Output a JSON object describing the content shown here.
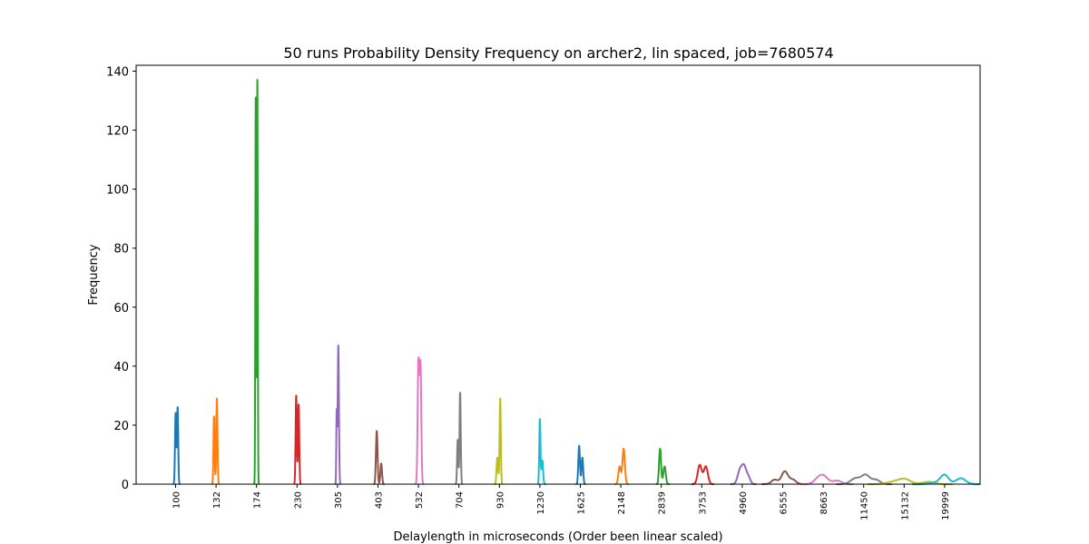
{
  "chart_data": {
    "type": "line",
    "title": "50 runs Probability Density Frequency on archer2, lin spaced, job=7680574",
    "xlabel": "Delaylength in microseconds (Order been linear scaled)",
    "ylabel": "Frequency",
    "ylim": [
      0,
      142
    ],
    "yticks": [
      0,
      20,
      40,
      60,
      80,
      100,
      120,
      140
    ],
    "categories": [
      "100",
      "132",
      "174",
      "230",
      "305",
      "403",
      "532",
      "704",
      "930",
      "1230",
      "1625",
      "2148",
      "2839",
      "3753",
      "4960",
      "6555",
      "8663",
      "11450",
      "15132",
      "19999"
    ],
    "grid": false,
    "legend": "none",
    "colors": [
      "#1f77b4",
      "#ff7f0e",
      "#2ca02c",
      "#d62728",
      "#9467bd",
      "#8c564b",
      "#e377c2",
      "#7f7f7f",
      "#bcbd22",
      "#17becf"
    ],
    "series": [
      {
        "category": "100",
        "peaks": [
          {
            "x": 0.0,
            "y": 24,
            "w": 0.015
          },
          {
            "x": 0.05,
            "y": 26,
            "w": 0.015
          }
        ]
      },
      {
        "category": "132",
        "peaks": [
          {
            "x": -0.05,
            "y": 23,
            "w": 0.015
          },
          {
            "x": 0.02,
            "y": 29,
            "w": 0.015
          }
        ]
      },
      {
        "category": "174",
        "peaks": [
          {
            "x": -0.02,
            "y": 131,
            "w": 0.01
          },
          {
            "x": 0.02,
            "y": 137,
            "w": 0.01
          }
        ]
      },
      {
        "category": "230",
        "peaks": [
          {
            "x": -0.02,
            "y": 30,
            "w": 0.015
          },
          {
            "x": 0.04,
            "y": 27,
            "w": 0.015
          }
        ]
      },
      {
        "category": "305",
        "peaks": [
          {
            "x": -0.02,
            "y": 24,
            "w": 0.01
          },
          {
            "x": 0.02,
            "y": 47,
            "w": 0.015
          }
        ]
      },
      {
        "category": "403",
        "peaks": [
          {
            "x": -0.03,
            "y": 18,
            "w": 0.02
          },
          {
            "x": 0.08,
            "y": 7,
            "w": 0.02
          }
        ]
      },
      {
        "category": "532",
        "peaks": [
          {
            "x": 0.0,
            "y": 41,
            "w": 0.02
          },
          {
            "x": 0.05,
            "y": 40,
            "w": 0.02
          }
        ]
      },
      {
        "category": "704",
        "peaks": [
          {
            "x": -0.03,
            "y": 15,
            "w": 0.015
          },
          {
            "x": 0.03,
            "y": 31,
            "w": 0.015
          }
        ]
      },
      {
        "category": "930",
        "peaks": [
          {
            "x": -0.05,
            "y": 9,
            "w": 0.02
          },
          {
            "x": 0.02,
            "y": 29,
            "w": 0.015
          }
        ]
      },
      {
        "category": "1230",
        "peaks": [
          {
            "x": 0.0,
            "y": 22,
            "w": 0.015
          },
          {
            "x": 0.06,
            "y": 8,
            "w": 0.02
          }
        ]
      },
      {
        "category": "1625",
        "peaks": [
          {
            "x": -0.03,
            "y": 13,
            "w": 0.02
          },
          {
            "x": 0.05,
            "y": 9,
            "w": 0.02
          }
        ]
      },
      {
        "category": "2148",
        "peaks": [
          {
            "x": -0.03,
            "y": 6,
            "w": 0.03
          },
          {
            "x": 0.07,
            "y": 12,
            "w": 0.03
          }
        ]
      },
      {
        "category": "2839",
        "peaks": [
          {
            "x": -0.03,
            "y": 12,
            "w": 0.025
          },
          {
            "x": 0.08,
            "y": 6,
            "w": 0.03
          }
        ]
      },
      {
        "category": "3753",
        "peaks": [
          {
            "x": -0.05,
            "y": 6.5,
            "w": 0.05
          },
          {
            "x": 0.1,
            "y": 6,
            "w": 0.05
          }
        ]
      },
      {
        "category": "4960",
        "peaks": [
          {
            "x": -0.05,
            "y": 5,
            "w": 0.06
          },
          {
            "x": 0.05,
            "y": 5,
            "w": 0.05
          },
          {
            "x": 0.15,
            "y": 2.5,
            "w": 0.05
          }
        ]
      },
      {
        "category": "6555",
        "peaks": [
          {
            "x": -0.2,
            "y": 1.5,
            "w": 0.08
          },
          {
            "x": 0.05,
            "y": 4.3,
            "w": 0.08
          },
          {
            "x": 0.25,
            "y": 1.5,
            "w": 0.08
          }
        ]
      },
      {
        "category": "8663",
        "peaks": [
          {
            "x": -0.15,
            "y": 1.0,
            "w": 0.1
          },
          {
            "x": 0.0,
            "y": 2.8,
            "w": 0.12
          },
          {
            "x": 0.35,
            "y": 1.2,
            "w": 0.1
          }
        ]
      },
      {
        "category": "11450",
        "peaks": [
          {
            "x": -0.2,
            "y": 2.0,
            "w": 0.12
          },
          {
            "x": 0.05,
            "y": 3.0,
            "w": 0.1
          },
          {
            "x": 0.3,
            "y": 1.5,
            "w": 0.1
          }
        ]
      },
      {
        "category": "15132",
        "peaks": [
          {
            "x": -0.3,
            "y": 0.7,
            "w": 0.15
          },
          {
            "x": 0.0,
            "y": 1.8,
            "w": 0.15
          },
          {
            "x": 0.6,
            "y": 0.8,
            "w": 0.15
          }
        ]
      },
      {
        "category": "19999",
        "peaks": [
          {
            "x": -0.2,
            "y": 0.6,
            "w": 0.15
          },
          {
            "x": 0.0,
            "y": 3.0,
            "w": 0.1
          },
          {
            "x": 0.4,
            "y": 2.0,
            "w": 0.12
          }
        ]
      }
    ]
  }
}
